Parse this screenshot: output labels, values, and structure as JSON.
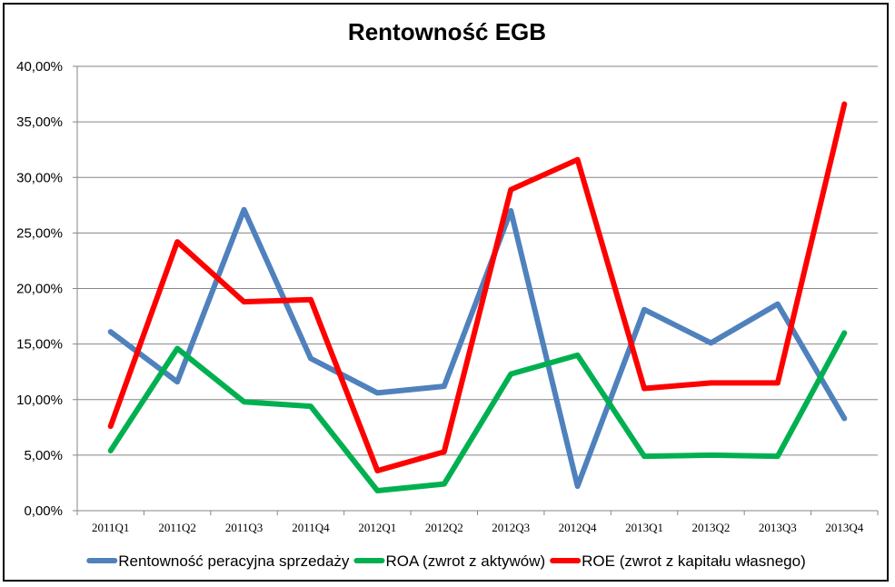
{
  "chart_data": {
    "type": "line",
    "title": "Rentowność EGB",
    "xlabel": "",
    "ylabel": "",
    "categories": [
      "2011Q1",
      "2011Q2",
      "2011Q3",
      "2011Q4",
      "2012Q1",
      "2012Q2",
      "2012Q3",
      "2012Q4",
      "2013Q1",
      "2013Q2",
      "2013Q3",
      "2013Q4"
    ],
    "ylim": [
      0,
      40
    ],
    "yticks": [
      "0,00%",
      "5,00%",
      "10,00%",
      "15,00%",
      "20,00%",
      "25,00%",
      "30,00%",
      "35,00%",
      "40,00%"
    ],
    "grid": true,
    "legend_position": "bottom",
    "series": [
      {
        "name": "Rentowność peracyjna sprzedaży",
        "color": "#4f81bd",
        "values": [
          16.1,
          11.6,
          27.1,
          13.7,
          10.6,
          11.2,
          27.0,
          2.2,
          18.1,
          15.1,
          18.6,
          8.3
        ]
      },
      {
        "name": "ROA (zwrot z aktywów)",
        "color": "#00b050",
        "values": [
          5.4,
          14.6,
          9.8,
          9.4,
          1.8,
          2.4,
          12.3,
          14.0,
          4.9,
          5.0,
          4.9,
          16.0
        ]
      },
      {
        "name": "ROE (zwrot z kapitału własnego)",
        "color": "#ff0000",
        "values": [
          7.6,
          24.2,
          18.8,
          19.0,
          3.6,
          5.3,
          28.9,
          31.6,
          11.0,
          11.5,
          11.5,
          36.6
        ]
      }
    ]
  }
}
